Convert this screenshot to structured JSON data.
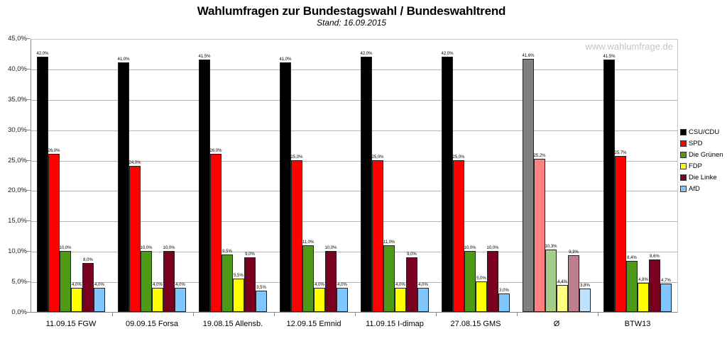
{
  "header": {
    "title": "Wahlumfragen zur Bundestagswahl / Bundeswahltrend",
    "subtitle": "Stand: 16.09.2015",
    "watermark": "www.wahlumfrage.de"
  },
  "legend": [
    {
      "label": "CSU/CDU",
      "color": "#000000"
    },
    {
      "label": "SPD",
      "color": "#ff0000"
    },
    {
      "label": "Die Grünen",
      "color": "#4e9a16"
    },
    {
      "label": "FDP",
      "color": "#ffff00"
    },
    {
      "label": "Die Linke",
      "color": "#7a0020"
    },
    {
      "label": "AfD",
      "color": "#7fc6ff"
    }
  ],
  "y_ticks": [
    "0,0%",
    "5,0%",
    "10,0%",
    "15,0%",
    "20,0%",
    "25,0%",
    "30,0%",
    "35,0%",
    "40,0%",
    "45,0%"
  ],
  "chart_data": {
    "type": "bar",
    "title": "Wahlumfragen zur Bundestagswahl / Bundeswahltrend",
    "subtitle": "Stand: 16.09.2015",
    "xlabel": "",
    "ylabel": "",
    "ylim": [
      0,
      45
    ],
    "grid": true,
    "legend_position": "right",
    "categories": [
      "11.09.15 FGW",
      "09.09.15 Forsa",
      "19.08.15 Allensb.",
      "12.09.15 Emnid",
      "11.09.15 I-dimap",
      "27.08.15 GMS",
      "Ø",
      "BTW13"
    ],
    "series": [
      {
        "name": "CSU/CDU",
        "values": [
          42.0,
          41.0,
          41.5,
          41.0,
          42.0,
          42.0,
          41.6,
          41.5
        ]
      },
      {
        "name": "SPD",
        "values": [
          26.0,
          24.0,
          26.0,
          25.0,
          25.0,
          25.0,
          25.2,
          25.7
        ]
      },
      {
        "name": "Die Grünen",
        "values": [
          10.0,
          10.0,
          9.5,
          11.0,
          11.0,
          10.0,
          10.3,
          8.4
        ]
      },
      {
        "name": "FDP",
        "values": [
          4.0,
          4.0,
          5.5,
          4.0,
          4.0,
          5.0,
          4.4,
          4.8
        ]
      },
      {
        "name": "Die Linke",
        "values": [
          8.0,
          10.0,
          9.0,
          10.0,
          9.0,
          10.0,
          9.3,
          8.6
        ]
      },
      {
        "name": "AfD",
        "values": [
          4.0,
          4.0,
          3.5,
          4.0,
          4.0,
          3.0,
          3.8,
          4.7
        ]
      }
    ],
    "labels": [
      [
        "42,0%",
        "26,0%",
        "10,0%",
        "4,0%",
        "8,0%",
        "4,0%"
      ],
      [
        "41,0%",
        "24,0%",
        "10,0%",
        "4,0%",
        "10,0%",
        "4,0%"
      ],
      [
        "41,5%",
        "26,0%",
        "9,5%",
        "5,5%",
        "9,0%",
        "3,5%"
      ],
      [
        "41,0%",
        "25,0%",
        "11,0%",
        "4,0%",
        "10,0%",
        "4,0%"
      ],
      [
        "42,0%",
        "25,0%",
        "11,0%",
        "4,0%",
        "9,0%",
        "4,0%"
      ],
      [
        "42,0%",
        "25,0%",
        "10,0%",
        "5,0%",
        "10,0%",
        "3,0%"
      ],
      [
        "41,6%",
        "25,2%",
        "10,3%",
        "4,4%",
        "9,3%",
        "3,8%"
      ],
      [
        "41,5%",
        "25,7%",
        "8,4%",
        "4,8%",
        "8,6%",
        "4,7%"
      ]
    ],
    "average_group_colors": [
      "#808080",
      "#ff8080",
      "#a6cc8a",
      "#ffff80",
      "#bf7f8f",
      "#bfe2ff"
    ]
  }
}
